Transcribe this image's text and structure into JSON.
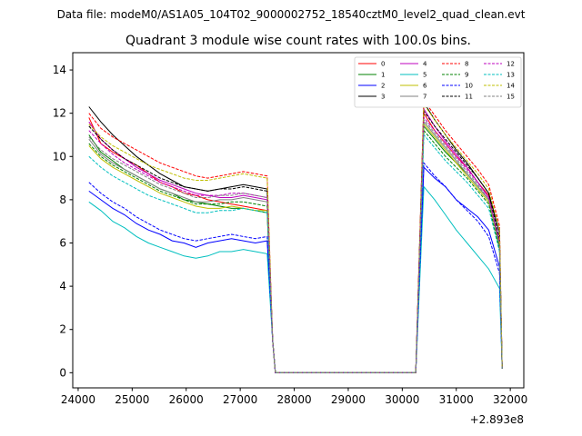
{
  "chart_data": {
    "type": "line",
    "suptitle": "Data file: modeM0/AS1A05_104T02_9000002752_18540cztM0_level2_quad_clean.evt",
    "title": "Quadrant 3 module wise count rates with 100.0s bins.",
    "xlabel": "",
    "ylabel": "",
    "x_offset_label": "+2.893e8",
    "xlim": [
      23900,
      32250
    ],
    "ylim": [
      -0.7,
      14.8
    ],
    "x_ticks": [
      24000,
      25000,
      26000,
      27000,
      28000,
      29000,
      30000,
      31000,
      32000
    ],
    "x_tick_labels": [
      "24000",
      "25000",
      "26000",
      "27000",
      "28000",
      "29000",
      "30000",
      "31000",
      "32000"
    ],
    "y_ticks": [
      0,
      2,
      4,
      6,
      8,
      10,
      12,
      14
    ],
    "y_tick_labels": [
      "0",
      "2",
      "4",
      "6",
      "8",
      "10",
      "12",
      "14"
    ],
    "grid": false,
    "legend_position": "top-right",
    "legend_columns": 4,
    "series": [
      {
        "name": "0",
        "color": "#ff0000",
        "dash": "solid",
        "seg1": [
          11.8,
          10.6,
          10.2,
          9.9,
          9.6,
          9.2,
          8.8,
          8.6,
          8.3,
          8.2,
          8.0,
          7.9,
          7.8,
          7.7,
          7.6,
          7.5
        ],
        "seg2": [
          12.0,
          11.2,
          10.6,
          10.0,
          9.5,
          8.8,
          8.2,
          6.0
        ]
      },
      {
        "name": "1",
        "color": "#008000",
        "dash": "solid",
        "seg1": [
          11.0,
          10.2,
          9.8,
          9.4,
          9.1,
          8.8,
          8.5,
          8.3,
          8.0,
          7.9,
          7.8,
          7.7,
          7.6,
          7.6,
          7.5,
          7.4
        ],
        "seg2": [
          11.4,
          10.8,
          10.2,
          9.7,
          9.2,
          8.6,
          8.0,
          5.8
        ]
      },
      {
        "name": "2",
        "color": "#0000ff",
        "dash": "solid",
        "seg1": [
          8.4,
          8.0,
          7.6,
          7.3,
          6.9,
          6.6,
          6.4,
          6.1,
          6.0,
          5.8,
          6.0,
          6.1,
          6.2,
          6.1,
          6.0,
          6.1
        ],
        "seg2": [
          9.5,
          9.0,
          8.6,
          8.0,
          7.6,
          7.2,
          6.6,
          4.9
        ]
      },
      {
        "name": "3",
        "color": "#000000",
        "dash": "solid",
        "seg1": [
          12.3,
          11.6,
          11.0,
          10.5,
          10.0,
          9.6,
          9.2,
          8.9,
          8.6,
          8.5,
          8.4,
          8.5,
          8.6,
          8.7,
          8.6,
          8.5
        ],
        "seg2": [
          12.5,
          11.7,
          11.0,
          10.3,
          9.7,
          9.0,
          8.3,
          6.5
        ]
      },
      {
        "name": "4",
        "color": "#bf00bf",
        "dash": "solid",
        "seg1": [
          11.6,
          10.8,
          10.3,
          9.9,
          9.5,
          9.2,
          8.9,
          8.7,
          8.5,
          8.3,
          8.2,
          8.1,
          8.1,
          8.2,
          8.1,
          8.0
        ],
        "seg2": [
          12.2,
          11.4,
          10.7,
          10.1,
          9.5,
          8.8,
          8.1,
          6.1
        ]
      },
      {
        "name": "5",
        "color": "#00bfbf",
        "dash": "solid",
        "seg1": [
          7.9,
          7.5,
          7.0,
          6.7,
          6.3,
          6.0,
          5.8,
          5.6,
          5.4,
          5.3,
          5.4,
          5.6,
          5.6,
          5.7,
          5.6,
          5.5
        ],
        "seg2": [
          8.6,
          8.0,
          7.3,
          6.6,
          6.0,
          5.4,
          4.8,
          3.9
        ]
      },
      {
        "name": "6",
        "color": "#bfbf00",
        "dash": "solid",
        "seg1": [
          10.5,
          9.9,
          9.5,
          9.2,
          8.9,
          8.6,
          8.3,
          8.1,
          7.9,
          7.7,
          7.6,
          7.6,
          7.7,
          7.6,
          7.5,
          7.5
        ],
        "seg2": [
          11.5,
          10.9,
          10.3,
          9.7,
          9.1,
          8.5,
          7.9,
          5.9
        ]
      },
      {
        "name": "7",
        "color": "#808080",
        "dash": "solid",
        "seg1": [
          10.8,
          10.1,
          9.7,
          9.4,
          9.1,
          8.8,
          8.5,
          8.3,
          8.1,
          7.9,
          7.9,
          8.0,
          8.0,
          8.1,
          8.0,
          7.9
        ],
        "seg2": [
          11.6,
          11.0,
          10.4,
          9.8,
          9.2,
          8.6,
          8.0,
          6.0
        ]
      },
      {
        "name": "8",
        "color": "#ff0000",
        "dash": "dashed",
        "seg1": [
          12.0,
          11.3,
          10.9,
          10.6,
          10.3,
          10.0,
          9.7,
          9.5,
          9.3,
          9.1,
          9.0,
          9.1,
          9.2,
          9.3,
          9.2,
          9.1
        ],
        "seg2": [
          12.6,
          11.9,
          11.2,
          10.6,
          10.0,
          9.4,
          8.7,
          6.8
        ]
      },
      {
        "name": "9",
        "color": "#008000",
        "dash": "dashed",
        "seg1": [
          10.6,
          10.0,
          9.6,
          9.3,
          9.0,
          8.7,
          8.4,
          8.2,
          8.0,
          7.8,
          7.8,
          7.8,
          7.9,
          7.9,
          7.8,
          7.7
        ],
        "seg2": [
          11.2,
          10.6,
          10.0,
          9.5,
          9.0,
          8.4,
          7.8,
          5.7
        ]
      },
      {
        "name": "10",
        "color": "#0000ff",
        "dash": "dashed",
        "seg1": [
          8.8,
          8.3,
          7.9,
          7.6,
          7.2,
          6.9,
          6.6,
          6.4,
          6.2,
          6.1,
          6.2,
          6.3,
          6.4,
          6.3,
          6.2,
          6.3
        ],
        "seg2": [
          9.7,
          9.1,
          8.6,
          8.0,
          7.5,
          7.0,
          6.3,
          4.6
        ]
      },
      {
        "name": "11",
        "color": "#000000",
        "dash": "dashed",
        "seg1": [
          11.4,
          10.8,
          10.3,
          9.9,
          9.6,
          9.3,
          9.0,
          8.8,
          8.6,
          8.5,
          8.4,
          8.5,
          8.5,
          8.6,
          8.5,
          8.4
        ],
        "seg2": [
          12.1,
          11.4,
          10.8,
          10.2,
          9.6,
          9.0,
          8.3,
          6.2
        ]
      },
      {
        "name": "12",
        "color": "#bf00bf",
        "dash": "dashed",
        "seg1": [
          11.2,
          10.6,
          10.1,
          9.7,
          9.4,
          9.1,
          8.8,
          8.6,
          8.4,
          8.2,
          8.2,
          8.2,
          8.3,
          8.3,
          8.2,
          8.1
        ],
        "seg2": [
          11.8,
          11.2,
          10.6,
          10.0,
          9.4,
          8.8,
          8.1,
          6.0
        ]
      },
      {
        "name": "13",
        "color": "#00bfbf",
        "dash": "dashed",
        "seg1": [
          10.0,
          9.5,
          9.1,
          8.8,
          8.5,
          8.2,
          8.0,
          7.8,
          7.6,
          7.4,
          7.4,
          7.5,
          7.5,
          7.6,
          7.5,
          7.4
        ],
        "seg2": [
          11.0,
          10.4,
          9.8,
          9.3,
          8.8,
          8.2,
          7.6,
          5.6
        ]
      },
      {
        "name": "14",
        "color": "#bfbf00",
        "dash": "dashed",
        "seg1": [
          11.5,
          10.9,
          10.5,
          10.2,
          9.9,
          9.6,
          9.4,
          9.2,
          9.0,
          8.9,
          8.9,
          9.0,
          9.1,
          9.2,
          9.1,
          9.0
        ],
        "seg2": [
          12.4,
          11.7,
          11.0,
          10.4,
          9.8,
          9.2,
          8.5,
          6.6
        ]
      },
      {
        "name": "15",
        "color": "#808080",
        "dash": "dashed",
        "seg1": [
          10.9,
          10.3,
          9.9,
          9.6,
          9.3,
          9.0,
          8.7,
          8.5,
          8.3,
          8.1,
          8.1,
          8.2,
          8.2,
          8.3,
          8.2,
          8.1
        ],
        "seg2": [
          11.7,
          11.1,
          10.5,
          9.9,
          9.3,
          8.7,
          8.0,
          5.9
        ]
      }
    ],
    "segment_x": {
      "seg1_start": 24200,
      "seg1_end": 27500,
      "seg2_start": 30400,
      "seg2_end": 31800,
      "drop_end": 27650,
      "zero_end": 30250,
      "last_x": 31850,
      "last_y": 0.2
    }
  }
}
